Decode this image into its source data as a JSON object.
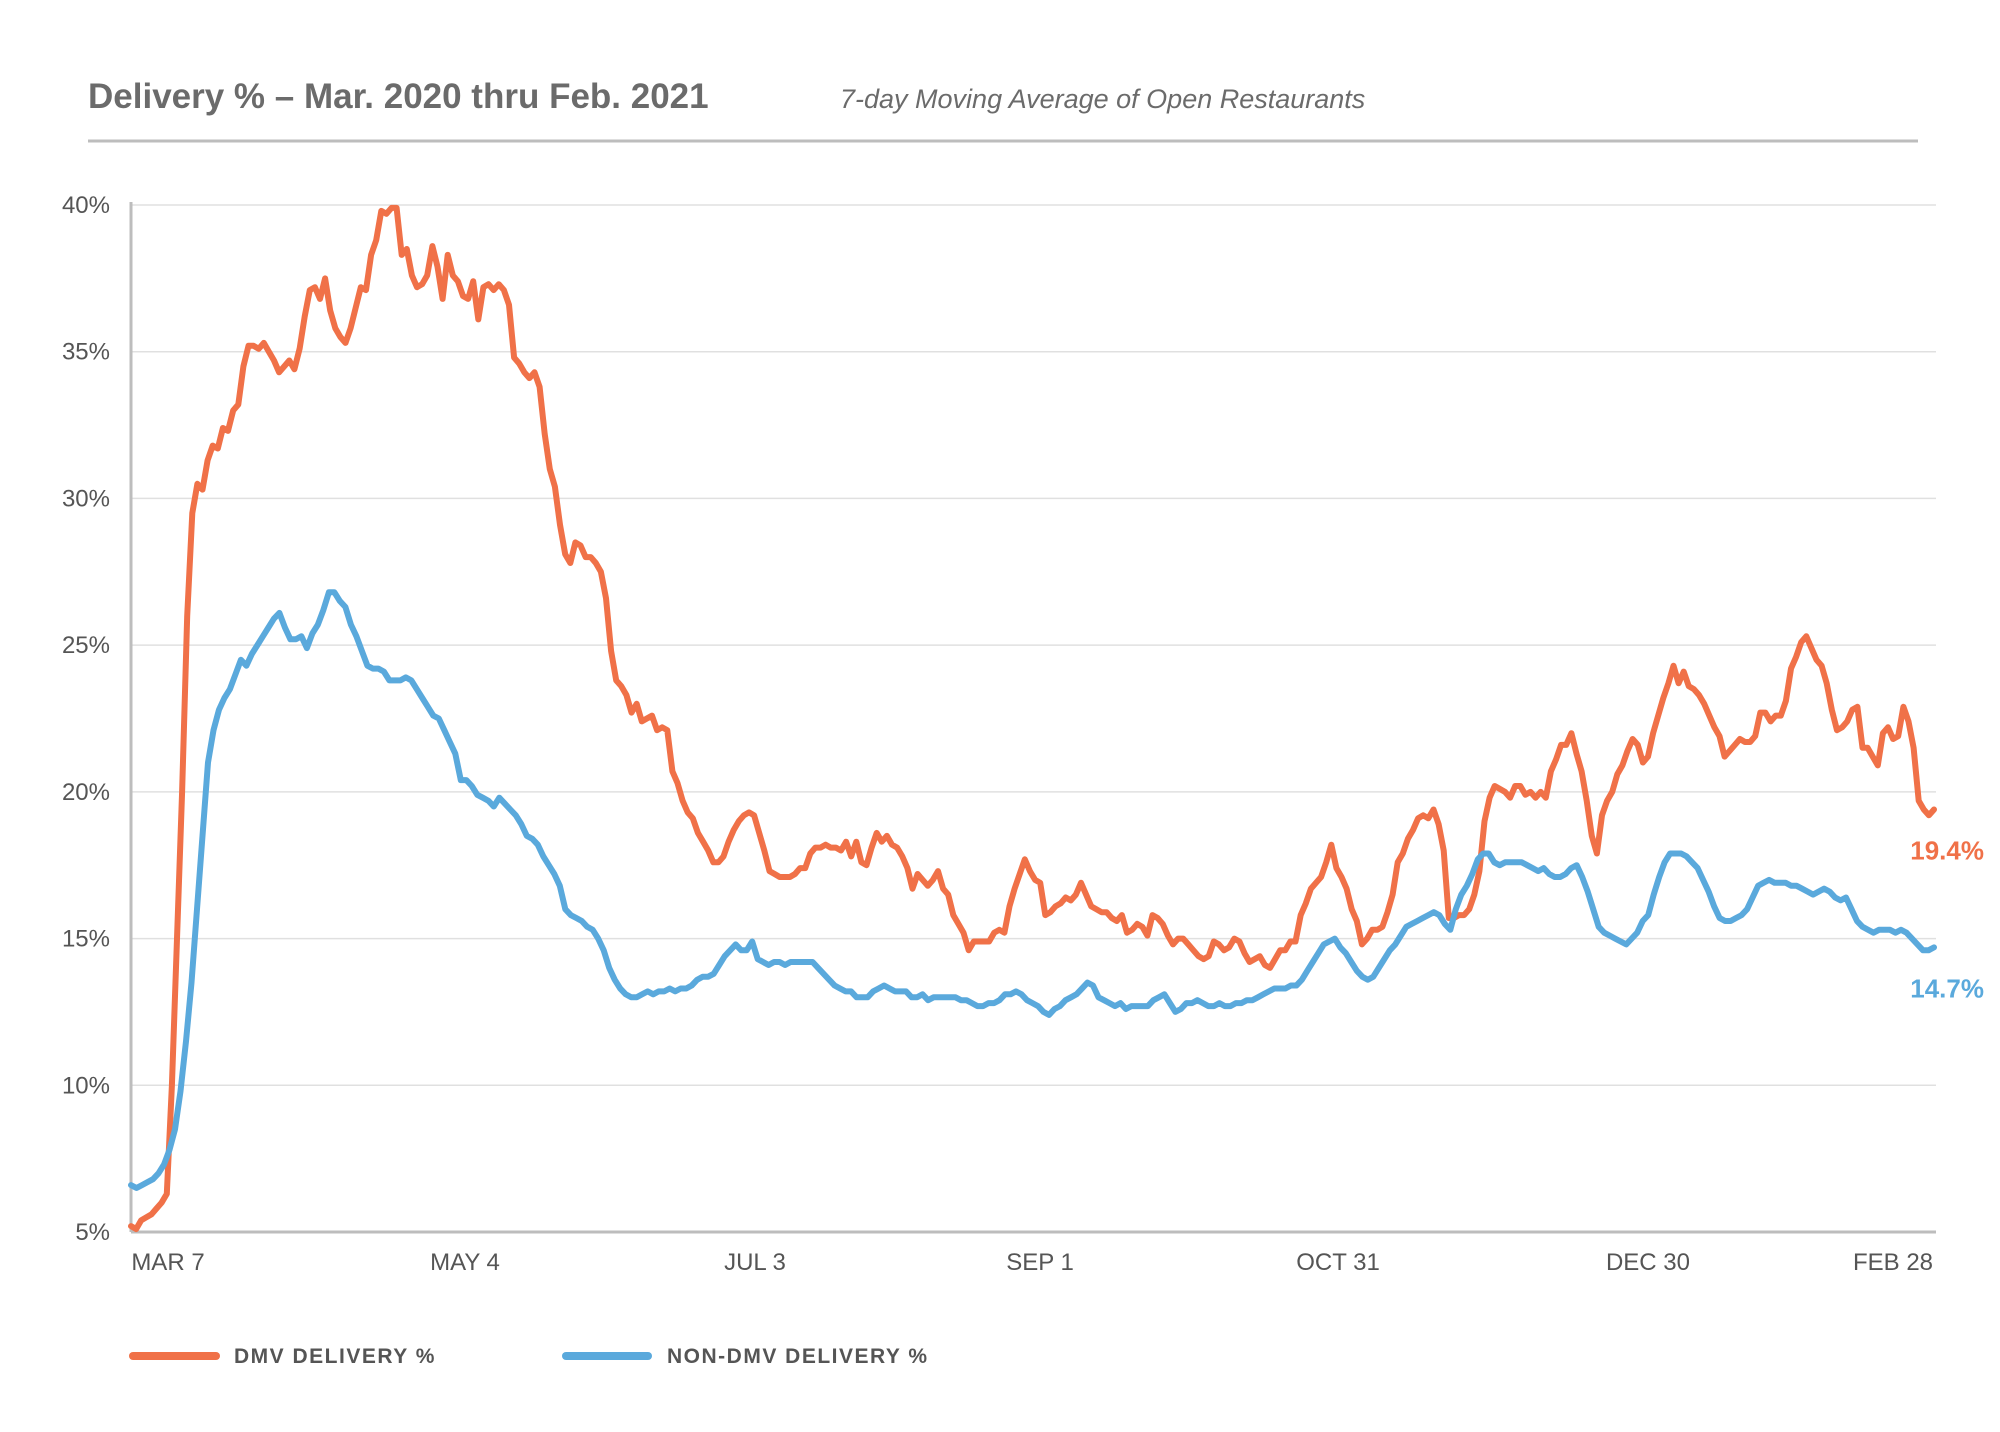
{
  "chart_data": {
    "type": "line",
    "title": "Delivery % – Mar. 2020 thru Feb. 2021",
    "subtitle": "7-day Moving Average of Open Restaurants",
    "xlabel": "",
    "ylabel": "",
    "x_ticks": [
      "MAR 7",
      "MAY 4",
      "JUL 3",
      "SEP 1",
      "OCT 31",
      "DEC 30",
      "FEB 28"
    ],
    "y_ticks": [
      "5%",
      "10%",
      "15%",
      "20%",
      "25%",
      "30%",
      "35%",
      "40%"
    ],
    "ylim": [
      5,
      40
    ],
    "grid": "horizontal",
    "legend_position": "bottom-left",
    "series": [
      {
        "name": "DMV DELIVERY %",
        "color": "#f07148",
        "end_label": "19.4%",
        "values": [
          5.2,
          5.1,
          5.4,
          5.5,
          5.6,
          5.8,
          6.0,
          6.3,
          10.0,
          15.0,
          20.0,
          26.0,
          29.5,
          30.5,
          30.3,
          31.3,
          31.8,
          31.7,
          32.4,
          32.3,
          33.0,
          33.2,
          34.5,
          35.2,
          35.2,
          35.1,
          35.3,
          35.0,
          34.7,
          34.3,
          34.5,
          34.7,
          34.4,
          35.1,
          36.2,
          37.1,
          37.2,
          36.8,
          37.5,
          36.4,
          35.8,
          35.5,
          35.3,
          35.8,
          36.5,
          37.2,
          37.1,
          38.3,
          38.8,
          39.8,
          39.7,
          39.9,
          39.9,
          38.3,
          38.5,
          37.6,
          37.2,
          37.3,
          37.6,
          38.6,
          37.9,
          36.8,
          38.3,
          37.6,
          37.4,
          36.9,
          36.8,
          37.4,
          36.1,
          37.2,
          37.3,
          37.1,
          37.3,
          37.1,
          36.6,
          34.8,
          34.6,
          34.3,
          34.1,
          34.3,
          33.8,
          32.2,
          31.0,
          30.4,
          29.1,
          28.1,
          27.8,
          28.5,
          28.4,
          28.0,
          28.0,
          27.8,
          27.5,
          26.6,
          24.8,
          23.8,
          23.6,
          23.3,
          22.7,
          23.0,
          22.4,
          22.5,
          22.6,
          22.1,
          22.2,
          22.1,
          20.7,
          20.3,
          19.7,
          19.3,
          19.1,
          18.6,
          18.3,
          18.0,
          17.6,
          17.6,
          17.8,
          18.3,
          18.7,
          19.0,
          19.2,
          19.3,
          19.2,
          18.6,
          18.0,
          17.3,
          17.2,
          17.1,
          17.1,
          17.1,
          17.2,
          17.4,
          17.4,
          17.9,
          18.1,
          18.1,
          18.2,
          18.1,
          18.1,
          18.0,
          18.3,
          17.8,
          18.3,
          17.6,
          17.5,
          18.1,
          18.6,
          18.3,
          18.5,
          18.2,
          18.1,
          17.8,
          17.4,
          16.7,
          17.2,
          17.0,
          16.8,
          17.0,
          17.3,
          16.7,
          16.5,
          15.8,
          15.5,
          15.2,
          14.6,
          14.9,
          14.9,
          14.9,
          14.9,
          15.2,
          15.3,
          15.2,
          16.1,
          16.7,
          17.2,
          17.7,
          17.3,
          17.0,
          16.9,
          15.8,
          15.9,
          16.1,
          16.2,
          16.4,
          16.3,
          16.5,
          16.9,
          16.5,
          16.1,
          16.0,
          15.9,
          15.9,
          15.7,
          15.6,
          15.8,
          15.2,
          15.3,
          15.5,
          15.4,
          15.1,
          15.8,
          15.7,
          15.5,
          15.1,
          14.8,
          15.0,
          15.0,
          14.8,
          14.6,
          14.4,
          14.3,
          14.4,
          14.9,
          14.8,
          14.6,
          14.7,
          15.0,
          14.9,
          14.5,
          14.2,
          14.3,
          14.4,
          14.1,
          14.0,
          14.3,
          14.6,
          14.6,
          14.9,
          14.9,
          15.8,
          16.2,
          16.7,
          16.9,
          17.1,
          17.6,
          18.2,
          17.4,
          17.1,
          16.7,
          16.0,
          15.6,
          14.8,
          15.0,
          15.3,
          15.3,
          15.4,
          15.9,
          16.5,
          17.6,
          17.9,
          18.4,
          18.7,
          19.1,
          19.2,
          19.1,
          19.4,
          18.9,
          18.0,
          15.7,
          15.7,
          15.8,
          15.8,
          16.0,
          16.5,
          17.3,
          19.0,
          19.8,
          20.2,
          20.1,
          20.0,
          19.8,
          20.2,
          20.2,
          19.9,
          20.0,
          19.8,
          20.0,
          19.8,
          20.7,
          21.1,
          21.6,
          21.6,
          22.0,
          21.3,
          20.7,
          19.7,
          18.5,
          17.9,
          19.2,
          19.7,
          20.0,
          20.6,
          20.9,
          21.4,
          21.8,
          21.6,
          21.0,
          21.2,
          22.0,
          22.6,
          23.2,
          23.7,
          24.3,
          23.7,
          24.1,
          23.6,
          23.5,
          23.3,
          23.0,
          22.6,
          22.2,
          21.9,
          21.2,
          21.4,
          21.6,
          21.8,
          21.7,
          21.7,
          21.9,
          22.7,
          22.7,
          22.4,
          22.6,
          22.6,
          23.1,
          24.2,
          24.6,
          25.1,
          25.3,
          24.9,
          24.5,
          24.3,
          23.7,
          22.8,
          22.1,
          22.2,
          22.4,
          22.8,
          22.9,
          21.5,
          21.5,
          21.2,
          20.9,
          22.0,
          22.2,
          21.8,
          21.9,
          22.9,
          22.4,
          21.5,
          19.7,
          19.4,
          19.2,
          19.4
        ]
      },
      {
        "name": "NON-DMV DELIVERY %",
        "color": "#5aa9dc",
        "end_label": "14.7%",
        "values": [
          6.6,
          6.5,
          6.6,
          6.7,
          6.8,
          7.0,
          7.3,
          7.8,
          8.5,
          9.8,
          11.5,
          13.5,
          16.0,
          18.5,
          21.0,
          22.1,
          22.8,
          23.2,
          23.5,
          24.0,
          24.5,
          24.3,
          24.7,
          25.0,
          25.3,
          25.6,
          25.9,
          26.1,
          25.6,
          25.2,
          25.2,
          25.3,
          24.9,
          25.4,
          25.7,
          26.2,
          26.8,
          26.8,
          26.5,
          26.3,
          25.7,
          25.3,
          24.8,
          24.3,
          24.2,
          24.2,
          24.1,
          23.8,
          23.8,
          23.8,
          23.9,
          23.8,
          23.5,
          23.2,
          22.9,
          22.6,
          22.5,
          22.1,
          21.7,
          21.3,
          20.4,
          20.4,
          20.2,
          19.9,
          19.8,
          19.7,
          19.5,
          19.8,
          19.6,
          19.4,
          19.2,
          18.9,
          18.5,
          18.4,
          18.2,
          17.8,
          17.5,
          17.2,
          16.8,
          16.0,
          15.8,
          15.7,
          15.6,
          15.4,
          15.3,
          15.0,
          14.6,
          14.0,
          13.6,
          13.3,
          13.1,
          13.0,
          13.0,
          13.1,
          13.2,
          13.1,
          13.2,
          13.2,
          13.3,
          13.2,
          13.3,
          13.3,
          13.4,
          13.6,
          13.7,
          13.7,
          13.8,
          14.1,
          14.4,
          14.6,
          14.8,
          14.6,
          14.6,
          14.9,
          14.3,
          14.2,
          14.1,
          14.2,
          14.2,
          14.1,
          14.2,
          14.2,
          14.2,
          14.2,
          14.2,
          14.0,
          13.8,
          13.6,
          13.4,
          13.3,
          13.2,
          13.2,
          13.0,
          13.0,
          13.0,
          13.2,
          13.3,
          13.4,
          13.3,
          13.2,
          13.2,
          13.2,
          13.0,
          13.0,
          13.1,
          12.9,
          13.0,
          13.0,
          13.0,
          13.0,
          13.0,
          12.9,
          12.9,
          12.8,
          12.7,
          12.7,
          12.8,
          12.8,
          12.9,
          13.1,
          13.1,
          13.2,
          13.1,
          12.9,
          12.8,
          12.7,
          12.5,
          12.4,
          12.6,
          12.7,
          12.9,
          13.0,
          13.1,
          13.3,
          13.5,
          13.4,
          13.0,
          12.9,
          12.8,
          12.7,
          12.8,
          12.6,
          12.7,
          12.7,
          12.7,
          12.7,
          12.9,
          13.0,
          13.1,
          12.8,
          12.5,
          12.6,
          12.8,
          12.8,
          12.9,
          12.8,
          12.7,
          12.7,
          12.8,
          12.7,
          12.7,
          12.8,
          12.8,
          12.9,
          12.9,
          13.0,
          13.1,
          13.2,
          13.3,
          13.3,
          13.3,
          13.4,
          13.4,
          13.6,
          13.9,
          14.2,
          14.5,
          14.8,
          14.9,
          15.0,
          14.7,
          14.5,
          14.2,
          13.9,
          13.7,
          13.6,
          13.7,
          14.0,
          14.3,
          14.6,
          14.8,
          15.1,
          15.4,
          15.5,
          15.6,
          15.7,
          15.8,
          15.9,
          15.8,
          15.5,
          15.3,
          16.0,
          16.5,
          16.8,
          17.2,
          17.7,
          17.9,
          17.9,
          17.6,
          17.5,
          17.6,
          17.6,
          17.6,
          17.6,
          17.5,
          17.4,
          17.3,
          17.4,
          17.2,
          17.1,
          17.1,
          17.2,
          17.4,
          17.5,
          17.1,
          16.6,
          16.0,
          15.4,
          15.2,
          15.1,
          15.0,
          14.9,
          14.8,
          15.0,
          15.2,
          15.6,
          15.8,
          16.5,
          17.1,
          17.6,
          17.9,
          17.9,
          17.9,
          17.8,
          17.6,
          17.4,
          17.0,
          16.6,
          16.1,
          15.7,
          15.6,
          15.6,
          15.7,
          15.8,
          16.0,
          16.4,
          16.8,
          16.9,
          17.0,
          16.9,
          16.9,
          16.9,
          16.8,
          16.8,
          16.7,
          16.6,
          16.5,
          16.6,
          16.7,
          16.6,
          16.4,
          16.3,
          16.4,
          16.0,
          15.6,
          15.4,
          15.3,
          15.2,
          15.3,
          15.3,
          15.3,
          15.2,
          15.3,
          15.2,
          15.0,
          14.8,
          14.6,
          14.6,
          14.7
        ]
      }
    ]
  }
}
